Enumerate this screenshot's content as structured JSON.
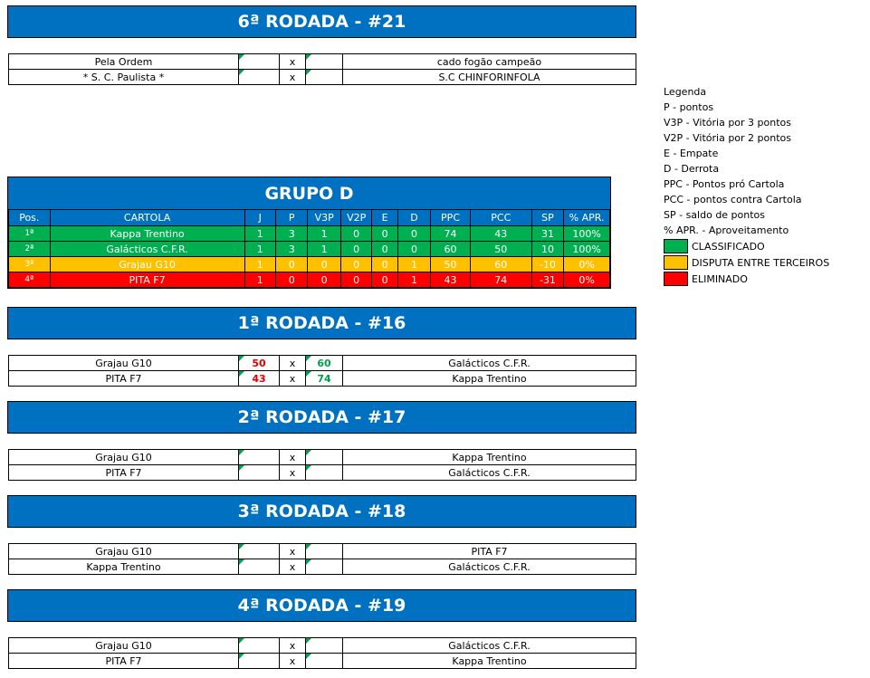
{
  "sections": [
    {
      "title": "6ª RODADA - #21",
      "matches": [
        {
          "home": "Pela Ordem",
          "hs": "",
          "x": "x",
          "as": "",
          "away": "cado fogão campeão",
          "hc": "",
          "ac": ""
        },
        {
          "home": "* S. C. Paulista *",
          "hs": "",
          "x": "x",
          "as": "",
          "away": "S.C CHINFORINFOLA",
          "hc": "",
          "ac": ""
        }
      ]
    },
    {
      "title": "1ª RODADA - #16",
      "matches": [
        {
          "home": "Grajau G10",
          "hs": "50",
          "x": "x",
          "as": "60",
          "away": "Galácticos C.F.R.",
          "hc": "red",
          "ac": "green"
        },
        {
          "home": "PITA F7",
          "hs": "43",
          "x": "x",
          "as": "74",
          "away": "Kappa Trentino",
          "hc": "red",
          "ac": "green"
        }
      ]
    },
    {
      "title": "2ª RODADA - #17",
      "matches": [
        {
          "home": "Grajau G10",
          "hs": "",
          "x": "x",
          "as": "",
          "away": "Kappa Trentino",
          "hc": "",
          "ac": ""
        },
        {
          "home": "PITA F7",
          "hs": "",
          "x": "x",
          "as": "",
          "away": "Galácticos C.F.R.",
          "hc": "",
          "ac": ""
        }
      ]
    },
    {
      "title": "3ª RODADA - #18",
      "matches": [
        {
          "home": "Grajau G10",
          "hs": "",
          "x": "x",
          "as": "",
          "away": "PITA F7",
          "hc": "",
          "ac": ""
        },
        {
          "home": "Kappa Trentino",
          "hs": "",
          "x": "x",
          "as": "",
          "away": "Galácticos C.F.R.",
          "hc": "",
          "ac": ""
        }
      ]
    },
    {
      "title": "4ª RODADA - #19",
      "matches": [
        {
          "home": "Grajau G10",
          "hs": "",
          "x": "x",
          "as": "",
          "away": "Galácticos C.F.R.",
          "hc": "",
          "ac": ""
        },
        {
          "home": "PITA F7",
          "hs": "",
          "x": "x",
          "as": "",
          "away": "Kappa Trentino",
          "hc": "",
          "ac": ""
        }
      ]
    }
  ],
  "group": {
    "title": "GRUPO D",
    "headers": [
      "Pos.",
      "CARTOLA",
      "J",
      "P",
      "V3P",
      "V2P",
      "E",
      "D",
      "PPC",
      "PCC",
      "SP",
      "% APR."
    ],
    "rows": [
      {
        "status": "green",
        "cells": [
          "1ª",
          "Kappa Trentino",
          "1",
          "3",
          "1",
          "0",
          "0",
          "0",
          "74",
          "43",
          "31",
          "100%"
        ]
      },
      {
        "status": "green",
        "cells": [
          "2ª",
          "Galácticos C.F.R.",
          "1",
          "3",
          "1",
          "0",
          "0",
          "0",
          "60",
          "50",
          "10",
          "100%"
        ]
      },
      {
        "status": "orange",
        "cells": [
          "3ª",
          "Grajau G10",
          "1",
          "0",
          "0",
          "0",
          "0",
          "1",
          "50",
          "60",
          "-10",
          "0%"
        ]
      },
      {
        "status": "red",
        "cells": [
          "4ª",
          "PITA F7",
          "1",
          "0",
          "0",
          "0",
          "0",
          "1",
          "43",
          "74",
          "-31",
          "0%"
        ]
      }
    ]
  },
  "legend": {
    "lines": [
      "Legenda",
      "P - pontos",
      "V3P - Vitória por 3 pontos",
      "V2P - Vitória por 2 pontos",
      "E - Empate",
      "D - Derrota",
      "PPC - Pontos pró Cartola",
      "PCC - pontos contra Cartola",
      "SP - saldo de pontos",
      "% APR. - Aproveitamento"
    ],
    "swatches": [
      {
        "label": "CLASSIFICADO",
        "color": "#00B050"
      },
      {
        "label": "DISPUTA ENTRE TERCEIROS",
        "color": "#FFC000"
      },
      {
        "label": "ELIMINADO",
        "color": "#FF0000"
      }
    ]
  }
}
